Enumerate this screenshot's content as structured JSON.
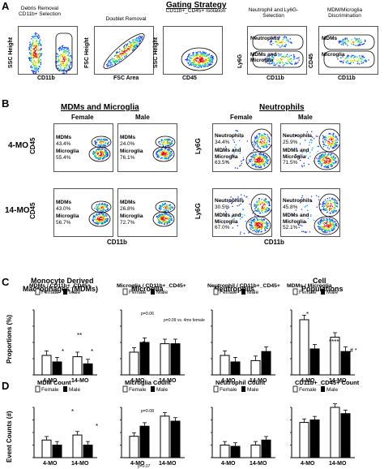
{
  "panelA": {
    "letter": "A",
    "title": "Gating Strategy",
    "plots": [
      {
        "title": "Debris Removal CD11b+ Selection",
        "xlabel": "CD11b",
        "ylabel": "SSC Height"
      },
      {
        "title": "Doublet Removal",
        "xlabel": "FSC Area",
        "ylabel": "FSC Height"
      },
      {
        "title": "CD11b+_CD45+ Isolation",
        "xlabel": "CD45",
        "ylabel": "SSC Height"
      },
      {
        "title": "Neutrophil and Ly6G- Selection",
        "xlabel": "CD11b",
        "ylabel": "Ly6G",
        "g1": "Neutrophils",
        "g2": "MDMs and Microglia"
      },
      {
        "title": "MDM/Microglia Discrimination",
        "xlabel": "CD11b",
        "ylabel": "CD45",
        "g1": "MDMs",
        "g2": "Microglia"
      }
    ]
  },
  "panelB": {
    "letter": "B",
    "left_title": "MDMs and Microglia",
    "right_title": "Neutrophils",
    "female": "Female",
    "male": "Male",
    "row1": "4-MO",
    "row2": "14-MO",
    "xlabel": "CD11b",
    "ylabel_left": "CD45",
    "ylabel_right": "Ly6G",
    "cells": {
      "l_4_f": {
        "a": "MDMs",
        "av": "43.4%",
        "b": "Microglia",
        "bv": "55.4%"
      },
      "l_4_m": {
        "a": "MDMs",
        "av": "24.0%",
        "b": "Microglia",
        "bv": "76.1%"
      },
      "l_14_f": {
        "a": "MDMs",
        "av": "43.0%",
        "b": "Microglia",
        "bv": "56.7%"
      },
      "l_14_m": {
        "a": "MDMs",
        "av": "26.8%",
        "b": "Microglia",
        "bv": "72.7%"
      },
      "r_4_f": {
        "a": "Neutrophils",
        "av": "34.4%",
        "b": "MDMs and Microglia",
        "bv": "63.5%"
      },
      "r_4_m": {
        "a": "Neutrophils",
        "av": "25.9%",
        "b": "MDMs and Microglia",
        "bv": "71.5%"
      },
      "r_14_f": {
        "a": "Neutrophils",
        "av": "30.5%",
        "b": "MDMs and Microglia",
        "bv": "67.0%"
      },
      "r_14_m": {
        "a": "Neutrophils",
        "av": "45.8%",
        "b": "MDMs and Microglia",
        "bv": "52.1%"
      }
    }
  },
  "panelC": {
    "letter": "C",
    "ylabel": "Proportions (%)",
    "titles": [
      "Monocyte Derived Macrophages (MDMs)",
      "Microglia",
      "Neutrophils",
      "Cell Populations"
    ],
    "subtitles": [
      "MDMs / CD11b+_CD45+",
      "Microglia / CD11b+_CD45+",
      "Neutrophil / CD11b+_CD45+",
      "MDMs / Microglia"
    ],
    "legend_female": "Female",
    "legend_male": "Male",
    "note_p": "p=0.06",
    "note_p2": "p=0.09 vs. 4mo female",
    "groups": [
      "4-MO",
      "14-MO"
    ]
  },
  "panelD": {
    "letter": "D",
    "ylabel": "Event Counts (#)",
    "titles": [
      "MDM Count",
      "Microglia Count",
      "Neutrophil Count",
      "CD11b+_CD45+ Count"
    ],
    "legend_female": "Female",
    "legend_male": "Male",
    "note_p": "p=0.08",
    "note_p2": "p=0.07",
    "groups": [
      "4-MO",
      "14-MO"
    ]
  },
  "chart_data": [
    {
      "type": "bar",
      "title": "MDMs / CD11b+_CD45+",
      "categories": [
        "4-MO",
        "14-MO"
      ],
      "ylim": [
        0,
        100
      ],
      "series": [
        {
          "name": "Female",
          "values": [
            30,
            28
          ]
        },
        {
          "name": "Male",
          "values": [
            20,
            17
          ]
        }
      ]
    },
    {
      "type": "bar",
      "title": "Microglia / CD11b+_CD45+",
      "categories": [
        "4-MO",
        "14-MO"
      ],
      "ylim": [
        0,
        100
      ],
      "series": [
        {
          "name": "Female",
          "values": [
            35,
            48
          ]
        },
        {
          "name": "Male",
          "values": [
            50,
            48
          ]
        }
      ]
    },
    {
      "type": "bar",
      "title": "Neutrophil / CD11b+_CD45+",
      "categories": [
        "4-MO",
        "14-MO"
      ],
      "ylim": [
        0,
        100
      ],
      "series": [
        {
          "name": "Female",
          "values": [
            30,
            22
          ]
        },
        {
          "name": "Male",
          "values": [
            20,
            36
          ]
        }
      ]
    },
    {
      "type": "bar",
      "title": "MDMs / Microglia",
      "categories": [
        "4-MO",
        "14-MO"
      ],
      "ylim": [
        0,
        100
      ],
      "series": [
        {
          "name": "Female",
          "values": [
            85,
            58
          ]
        },
        {
          "name": "Male",
          "values": [
            40,
            36
          ]
        }
      ]
    },
    {
      "type": "bar",
      "title": "MDM Count",
      "categories": [
        "4-MO",
        "14-MO"
      ],
      "ylim": [
        0,
        40
      ],
      "series": [
        {
          "name": "Female",
          "values": [
            14,
            18
          ]
        },
        {
          "name": "Male",
          "values": [
            10,
            10
          ]
        }
      ]
    },
    {
      "type": "bar",
      "title": "Microglia Count",
      "categories": [
        "4-MO",
        "14-MO"
      ],
      "ylim": [
        0,
        40
      ],
      "series": [
        {
          "name": "Female",
          "values": [
            17,
            33
          ]
        },
        {
          "name": "Male",
          "values": [
            25,
            29
          ]
        }
      ]
    },
    {
      "type": "bar",
      "title": "Neutrophil Count",
      "categories": [
        "4-MO",
        "14-MO"
      ],
      "ylim": [
        0,
        40
      ],
      "series": [
        {
          "name": "Female",
          "values": [
            10,
            10
          ]
        },
        {
          "name": "Male",
          "values": [
            9,
            14
          ]
        }
      ]
    },
    {
      "type": "bar",
      "title": "CD11b+_CD45+ Count",
      "categories": [
        "4-MO",
        "14-MO"
      ],
      "ylim": [
        0,
        40
      ],
      "series": [
        {
          "name": "Female",
          "values": [
            28,
            40
          ]
        },
        {
          "name": "Male",
          "values": [
            30,
            35
          ]
        }
      ]
    }
  ]
}
